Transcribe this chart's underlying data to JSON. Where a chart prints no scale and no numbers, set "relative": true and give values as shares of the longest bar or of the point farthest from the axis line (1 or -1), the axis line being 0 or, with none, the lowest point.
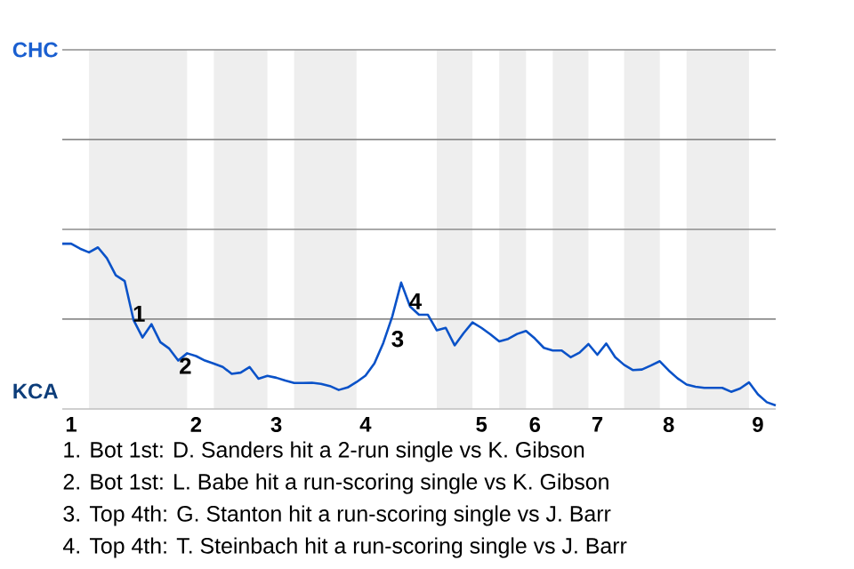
{
  "chart_data": {
    "type": "line",
    "relative": true,
    "categories": [
      null,
      "1",
      null,
      null,
      null,
      null,
      null,
      null,
      null,
      null,
      null,
      null,
      null,
      null,
      null,
      "2",
      null,
      null,
      null,
      null,
      null,
      null,
      null,
      null,
      "3",
      null,
      null,
      null,
      null,
      null,
      null,
      null,
      null,
      null,
      "4",
      null,
      null,
      null,
      null,
      null,
      null,
      null,
      null,
      null,
      null,
      null,
      null,
      "5",
      null,
      null,
      null,
      null,
      null,
      "6",
      null,
      null,
      null,
      null,
      null,
      null,
      "7",
      null,
      null,
      null,
      null,
      null,
      null,
      null,
      "8",
      null,
      null,
      null,
      null,
      null,
      null,
      null,
      null,
      null,
      "9",
      null,
      null
    ],
    "ref_lines": [
      {
        "axis": "y",
        "value": 0.544,
        "color": "#8c8c8c"
      },
      {
        "axis": "y",
        "value": 1.087,
        "color": "#8c8c8c"
      },
      {
        "axis": "y",
        "value": 1.631,
        "color": "#8c8c8c"
      },
      {
        "axis": "y",
        "value": 2.174,
        "color": "#8c8c8c"
      }
    ],
    "series": [
      {
        "color": "#0a52c8",
        "values": [
          1.0,
          1.0,
          0.97,
          0.948,
          0.978,
          0.913,
          0.809,
          0.774,
          0.537,
          0.433,
          0.513,
          0.404,
          0.365,
          0.293,
          0.337,
          0.32,
          0.293,
          0.274,
          0.254,
          0.213,
          0.22,
          0.254,
          0.183,
          0.2,
          0.189,
          0.172,
          0.157,
          0.157,
          0.159,
          0.152,
          0.139,
          0.115,
          0.13,
          0.163,
          0.202,
          0.276,
          0.4,
          0.559,
          0.765,
          0.62,
          0.57,
          0.57,
          0.476,
          0.491,
          0.385,
          0.459,
          0.524,
          0.491,
          0.452,
          0.409,
          0.424,
          0.454,
          0.472,
          0.426,
          0.37,
          0.354,
          0.354,
          0.313,
          0.341,
          0.393,
          0.328,
          0.396,
          0.313,
          0.267,
          0.235,
          0.239,
          0.263,
          0.289,
          0.233,
          0.185,
          0.148,
          0.135,
          0.128,
          0.128,
          0.128,
          0.104,
          0.124,
          0.161,
          0.089,
          0.041,
          0.022
        ]
      }
    ],
    "annotations": [
      "CHC",
      "KCA",
      "1",
      "2",
      "3",
      "4",
      "1. Bot 1st: D. Sanders hit a 2-run single vs K. Gibson",
      "2. Bot 1st: L. Babe hit a run-scoring single vs K. Gibson",
      "3. Top 4th: G. Stanton hit a run-scoring single vs J. Barr",
      "4. Top 4th: T. Steinbach hit a run-scoring single vs J. Barr"
    ]
  }
}
